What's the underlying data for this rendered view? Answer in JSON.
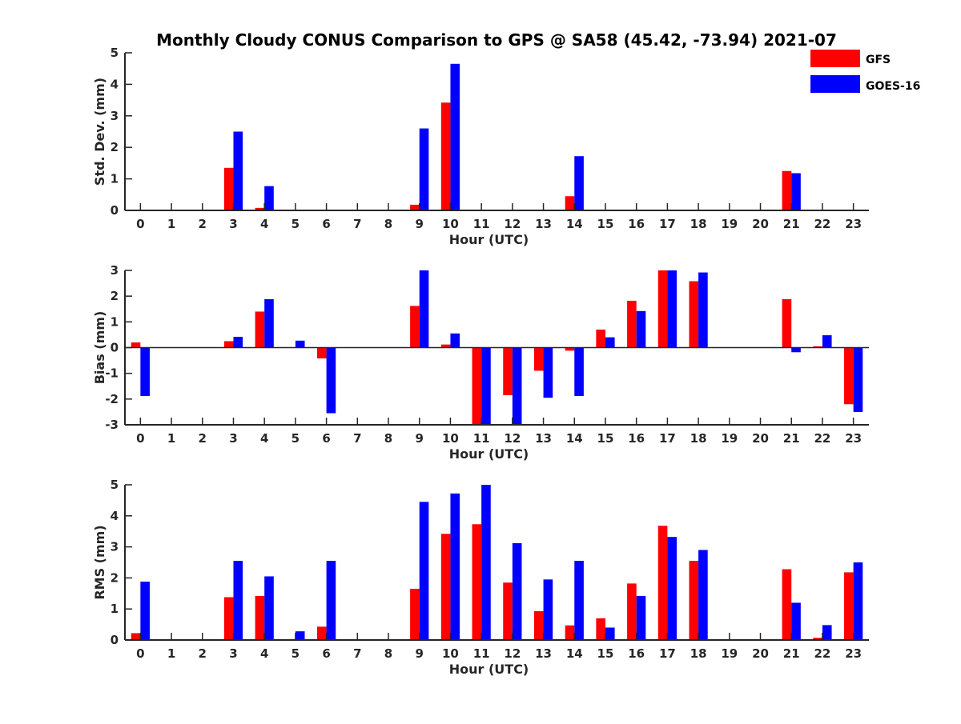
{
  "chart_data": {
    "type": "bar",
    "title": "Monthly Cloudy CONUS Comparison to GPS @ SA58 (45.42, -73.94) 2021-07",
    "categories": [
      "0",
      "1",
      "2",
      "3",
      "4",
      "5",
      "6",
      "7",
      "8",
      "9",
      "10",
      "11",
      "12",
      "13",
      "14",
      "15",
      "16",
      "17",
      "18",
      "19",
      "20",
      "21",
      "22",
      "23"
    ],
    "legend": {
      "placement": "top-right",
      "entries": [
        {
          "name": "GFS",
          "color": "#ff0000"
        },
        {
          "name": "GOES-16",
          "color": "#0000ff"
        }
      ]
    },
    "panels": [
      {
        "id": "std",
        "ylabel": "Std. Dev. (mm)",
        "xlabel": "Hour (UTC)",
        "ylim": [
          0,
          5
        ],
        "yticks": [
          "0",
          "1",
          "2",
          "3",
          "4",
          "5"
        ],
        "series": [
          {
            "name": "GFS",
            "color": "#ff0000",
            "values": [
              0,
              0,
              0,
              1.35,
              0.08,
              0,
              0,
              0,
              0,
              0.18,
              3.42,
              0,
              0,
              0,
              0.45,
              0,
              0,
              0,
              0,
              0,
              0,
              1.25,
              0,
              0
            ]
          },
          {
            "name": "GOES-16",
            "color": "#0000ff",
            "values": [
              0,
              0,
              0,
              2.5,
              0.77,
              0,
              0,
              0,
              0,
              2.6,
              4.65,
              0,
              0,
              0,
              1.72,
              0,
              0,
              0,
              0,
              0,
              0,
              1.18,
              0,
              0
            ]
          }
        ]
      },
      {
        "id": "bias",
        "ylabel": "Bias (mm)",
        "xlabel": "Hour (UTC)",
        "ylim": [
          -3,
          3
        ],
        "yticks": [
          "-3",
          "-2",
          "-1",
          "0",
          "1",
          "2",
          "3"
        ],
        "series": [
          {
            "name": "GFS",
            "color": "#ff0000",
            "values": [
              0.2,
              0,
              0,
              0.25,
              1.4,
              0,
              -0.42,
              0,
              0,
              1.62,
              0.12,
              -3,
              -1.85,
              -0.9,
              -0.12,
              0.7,
              1.82,
              3,
              2.58,
              0,
              0,
              1.88,
              0.05,
              -2.2
            ]
          },
          {
            "name": "GOES-16",
            "color": "#0000ff",
            "values": [
              -1.88,
              0,
              0,
              0.42,
              1.88,
              0.27,
              -2.55,
              0,
              0,
              3,
              0.55,
              -3,
              -3,
              -1.95,
              -1.88,
              0.4,
              1.42,
              3,
              2.92,
              0,
              0,
              -0.18,
              0.48,
              -2.5
            ]
          }
        ]
      },
      {
        "id": "rms",
        "ylabel": "RMS (mm)",
        "xlabel": "Hour (UTC)",
        "ylim": [
          0,
          5
        ],
        "yticks": [
          "0",
          "1",
          "2",
          "3",
          "4",
          "5"
        ],
        "series": [
          {
            "name": "GFS",
            "color": "#ff0000",
            "values": [
              0.22,
              0,
              0,
              1.38,
              1.42,
              0,
              0.43,
              0,
              0,
              1.65,
              3.42,
              3.73,
              1.85,
              0.93,
              0.47,
              0.7,
              1.82,
              3.68,
              2.55,
              0,
              0,
              2.28,
              0.07,
              2.18
            ]
          },
          {
            "name": "GOES-16",
            "color": "#0000ff",
            "values": [
              1.88,
              0,
              0,
              2.55,
              2.05,
              0.28,
              2.55,
              0,
              0,
              4.45,
              4.72,
              5,
              3.12,
              1.95,
              2.55,
              0.4,
              1.42,
              3.32,
              2.9,
              0,
              0,
              1.2,
              0.48,
              2.5
            ]
          }
        ]
      }
    ]
  }
}
